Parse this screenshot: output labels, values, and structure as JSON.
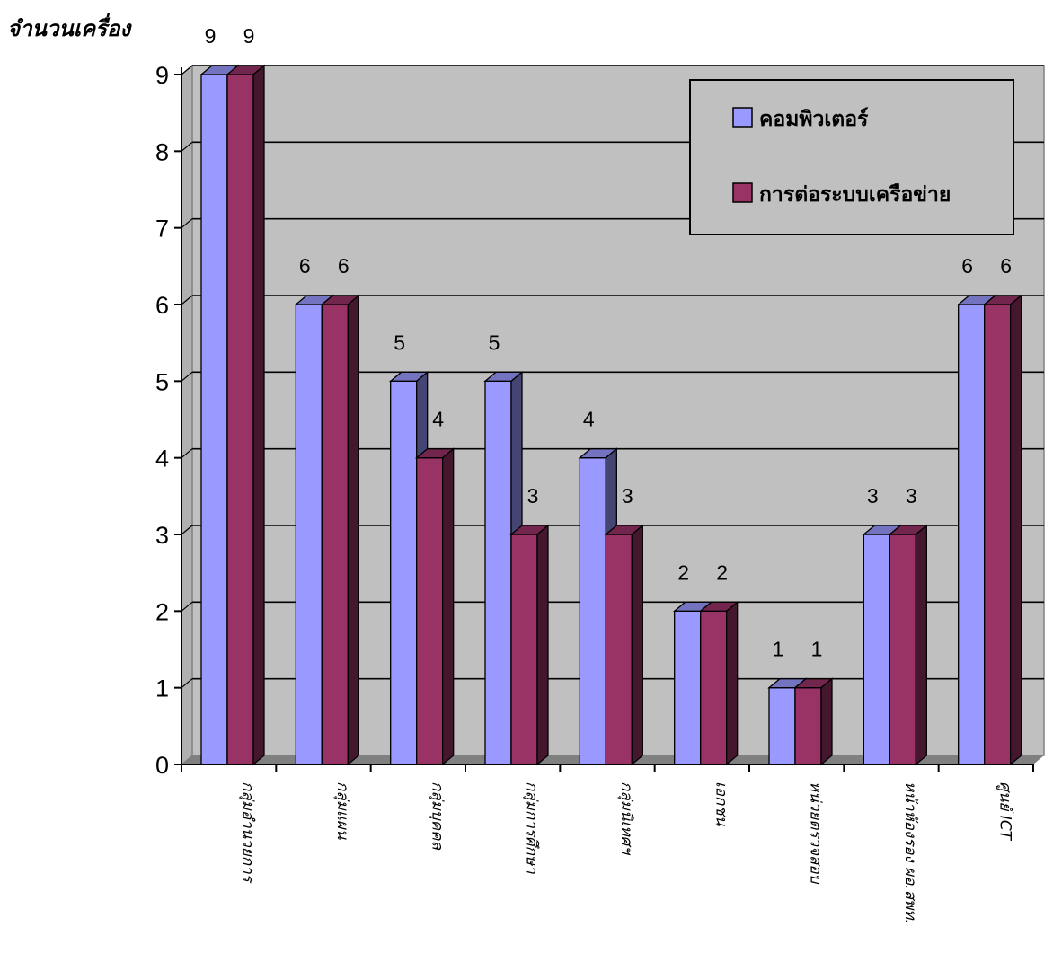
{
  "chart_data": {
    "type": "bar",
    "title": "",
    "ylabel": "จำนวนเครื่อง",
    "xlabel": "",
    "ylim": [
      0,
      9
    ],
    "yticks": [
      "0",
      "1",
      "2",
      "3",
      "4",
      "5",
      "6",
      "7",
      "8",
      "9"
    ],
    "grid": true,
    "legend_position": "top-right",
    "categories": [
      "กลุ่มอำนวยการ",
      "กลุ่มแผน",
      "กลุ่มบุคคล",
      "กลุ่มการศึกษา",
      "กลุ่มนิเทศฯ",
      "เอกชน",
      "หน่วยตรวจสอบ",
      "หน้าห้องรอง ผอ.สพท.",
      "ศูนย์ ICT"
    ],
    "series": [
      {
        "name": "คอมพิวเตอร์",
        "values": [
          9,
          6,
          5,
          5,
          4,
          2,
          1,
          3,
          6
        ],
        "color": "#9999ff"
      },
      {
        "name": "การต่อระบบเครือข่าย",
        "values": [
          9,
          6,
          4,
          3,
          3,
          2,
          1,
          3,
          6
        ],
        "color": "#993366"
      }
    ],
    "wall_color": "#c0c0c0",
    "floor_color": "#808080"
  }
}
